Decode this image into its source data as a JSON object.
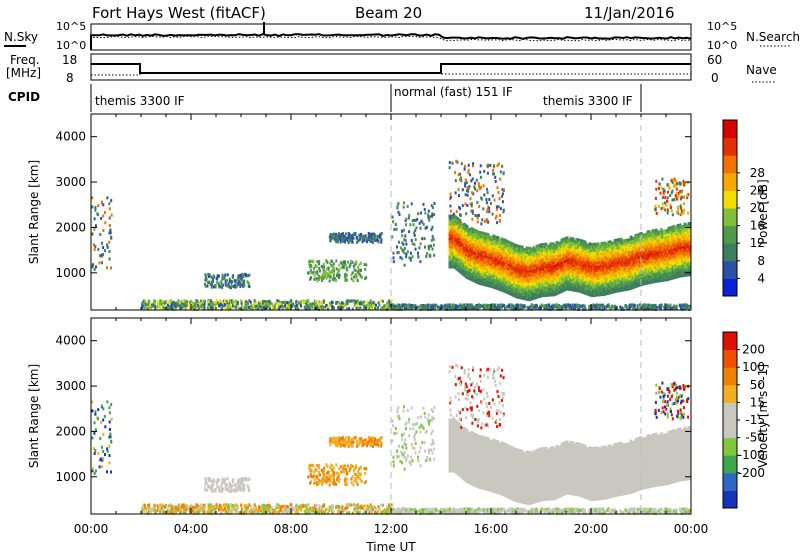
{
  "header": {
    "title": "Fort Hays West (fitACF)",
    "beam": "Beam 20",
    "date": "11/Jan/2016"
  },
  "noise_panel": {
    "left_label": "N.Sky",
    "left_ticks": [
      "10^5",
      "10^0"
    ],
    "right_label": "N.Search",
    "right_ticks": [
      "10^5",
      "10^0"
    ]
  },
  "freq_panel": {
    "left_label_top": "Freq.",
    "left_label_bottom": "[MHz]",
    "left_ticks": [
      "18",
      "8"
    ],
    "right_label": "Nave",
    "right_ticks": [
      "60",
      "0"
    ]
  },
  "cpid": {
    "label": "CPID",
    "segments": [
      {
        "text": "themis 3300 IF",
        "start_hour": 0
      },
      {
        "text": "normal (fast) 151 IF",
        "start_hour": 12
      },
      {
        "text": "themis 3300 IF",
        "start_hour": 22
      }
    ]
  },
  "chart_data": [
    {
      "type": "heatmap",
      "title": "",
      "xlabel": "Time UT",
      "ylabel": "Slant Range [km]",
      "x_ticks": [
        "00:00",
        "04:00",
        "08:00",
        "12:00",
        "16:00",
        "20:00",
        "00:00"
      ],
      "xlim_hours": [
        0,
        24
      ],
      "ylim": [
        180,
        4500
      ],
      "y_ticks": [
        1000,
        2000,
        3000,
        4000
      ],
      "colorbar": {
        "label": "Power [dB]",
        "ticks": [
          "4",
          "8",
          "12",
          "16",
          "20",
          "24",
          "28"
        ],
        "colors": [
          "#0a1fd8",
          "#2c4fa8",
          "#3d7d60",
          "#4f9a4a",
          "#7fbf3a",
          "#f2dd00",
          "#f5a800",
          "#f07000",
          "#e43000",
          "#d80000"
        ]
      },
      "band": [
        {
          "t": 14.5,
          "range": 1780
        },
        {
          "t": 15.0,
          "range": 1550
        },
        {
          "t": 15.5,
          "range": 1420
        },
        {
          "t": 16.0,
          "range": 1350
        },
        {
          "t": 16.5,
          "range": 1250
        },
        {
          "t": 17.0,
          "range": 1120
        },
        {
          "t": 17.5,
          "range": 1060
        },
        {
          "t": 18.0,
          "range": 1150
        },
        {
          "t": 18.5,
          "range": 1170
        },
        {
          "t": 19.0,
          "range": 1300
        },
        {
          "t": 19.5,
          "range": 1250
        },
        {
          "t": 20.0,
          "range": 1150
        },
        {
          "t": 20.5,
          "range": 1180
        },
        {
          "t": 21.0,
          "range": 1250
        },
        {
          "t": 21.5,
          "range": 1300
        },
        {
          "t": 22.0,
          "range": 1400
        },
        {
          "t": 22.5,
          "range": 1460
        },
        {
          "t": 23.0,
          "range": 1500
        },
        {
          "t": 23.5,
          "range": 1580
        },
        {
          "t": 24.0,
          "range": 1620
        }
      ]
    },
    {
      "type": "heatmap",
      "title": "",
      "xlabel": "Time UT",
      "ylabel": "Slant Range [km]",
      "x_ticks": [
        "00:00",
        "04:00",
        "08:00",
        "12:00",
        "16:00",
        "20:00",
        "00:00"
      ],
      "xlim_hours": [
        0,
        24
      ],
      "ylim": [
        180,
        4500
      ],
      "y_ticks": [
        1000,
        2000,
        3000,
        4000
      ],
      "colorbar": {
        "label": "Velocity [m s^-1]",
        "ticks": [
          "200",
          "100",
          "50",
          "15",
          "-15",
          "-50",
          "-100",
          "-200"
        ],
        "colors": [
          "#1535b8",
          "#2f67c5",
          "#3ca64a",
          "#7fc83d",
          "#c8c8c0",
          "#c8c8c0",
          "#f0b020",
          "#f08000",
          "#f05000",
          "#e01000"
        ]
      }
    }
  ]
}
